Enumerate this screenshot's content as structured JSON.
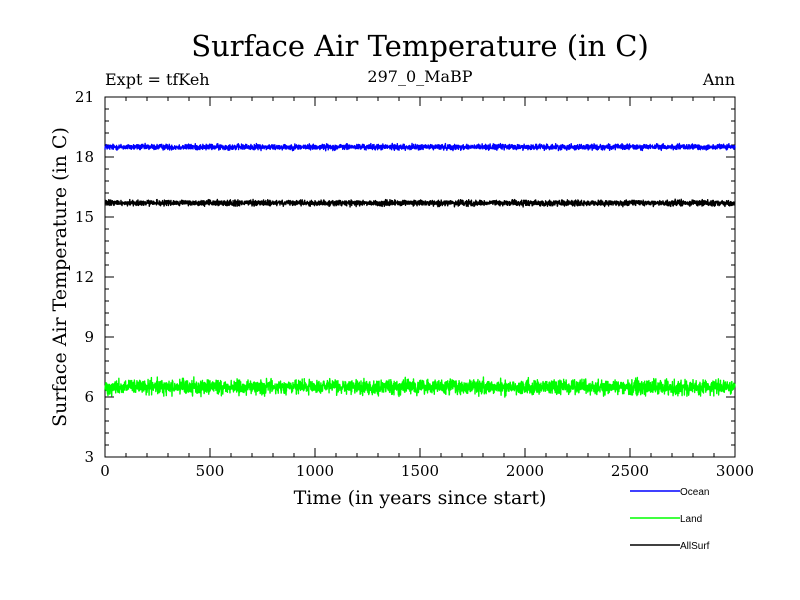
{
  "chart_data": {
    "type": "line",
    "title": "Surface Air Temperature (in C)",
    "subtitle_left": "Expt = tfKeh",
    "subtitle_center": "297_0_MaBP",
    "subtitle_right": "Ann",
    "xlabel": "Time (in years since start)",
    "ylabel": "Surface Air Temperature (in C)",
    "xlim": [
      0,
      3000
    ],
    "ylim": [
      3,
      21
    ],
    "xticks": [
      0,
      500,
      1000,
      1500,
      2000,
      2500,
      3000
    ],
    "yticks": [
      3,
      6,
      9,
      12,
      15,
      18,
      21
    ],
    "x_minor_step": 100,
    "y_minor_step": 0.6,
    "grid": false,
    "legend_position": "bottom-right, below plot",
    "series": [
      {
        "name": "Ocean",
        "color": "#0000ff",
        "mean": 18.5,
        "noise": 0.07,
        "x_start": 0,
        "x_end": 3000
      },
      {
        "name": "Land",
        "color": "#00ff00",
        "mean": 6.5,
        "noise": 0.18,
        "x_start": 0,
        "x_end": 3000
      },
      {
        "name": "AllSurf",
        "color": "#000000",
        "mean": 15.7,
        "noise": 0.07,
        "x_start": 0,
        "x_end": 3000
      }
    ]
  }
}
